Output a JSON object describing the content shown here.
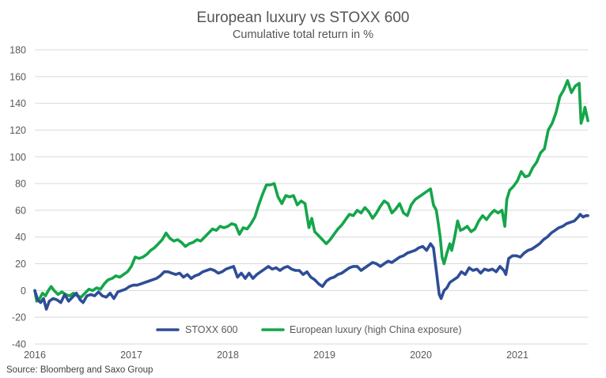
{
  "chart_data": {
    "type": "line",
    "title": "European luxury vs STOXX 600",
    "subtitle": "Cumulative total return in %",
    "xlabel": "",
    "ylabel": "",
    "ylim": [
      -40,
      180
    ],
    "yticks": [
      -40,
      -20,
      0,
      20,
      40,
      60,
      80,
      100,
      120,
      140,
      160,
      180
    ],
    "xlim": [
      2016,
      2021.73
    ],
    "xticks": [
      2016,
      2017,
      2018,
      2019,
      2020,
      2021
    ],
    "xtick_labels": [
      "2016",
      "2017",
      "2018",
      "2019",
      "2020",
      "2021"
    ],
    "grid": true,
    "legend_position": "bottom-center",
    "source": "Source: Bloomberg and Saxo Group",
    "series": [
      {
        "name": "STOXX 600",
        "color": "#2e4d96",
        "points": [
          [
            2016.0,
            0
          ],
          [
            2016.03,
            -7
          ],
          [
            2016.06,
            -9
          ],
          [
            2016.09,
            -6
          ],
          [
            2016.12,
            -14
          ],
          [
            2016.15,
            -8
          ],
          [
            2016.19,
            -6
          ],
          [
            2016.23,
            -7
          ],
          [
            2016.27,
            -9
          ],
          [
            2016.31,
            -3
          ],
          [
            2016.35,
            -8
          ],
          [
            2016.39,
            -5
          ],
          [
            2016.43,
            -2
          ],
          [
            2016.47,
            -7
          ],
          [
            2016.5,
            -9
          ],
          [
            2016.54,
            -4
          ],
          [
            2016.58,
            -3
          ],
          [
            2016.62,
            -4
          ],
          [
            2016.66,
            -1
          ],
          [
            2016.7,
            -4
          ],
          [
            2016.74,
            -5
          ],
          [
            2016.78,
            -2
          ],
          [
            2016.82,
            -6
          ],
          [
            2016.86,
            -1
          ],
          [
            2016.9,
            0
          ],
          [
            2016.94,
            1
          ],
          [
            2016.98,
            3
          ],
          [
            2017.02,
            4
          ],
          [
            2017.06,
            4
          ],
          [
            2017.1,
            5
          ],
          [
            2017.14,
            6
          ],
          [
            2017.18,
            7
          ],
          [
            2017.22,
            8
          ],
          [
            2017.26,
            9
          ],
          [
            2017.3,
            11
          ],
          [
            2017.34,
            14
          ],
          [
            2017.38,
            14
          ],
          [
            2017.42,
            13
          ],
          [
            2017.46,
            12
          ],
          [
            2017.5,
            13
          ],
          [
            2017.54,
            10
          ],
          [
            2017.58,
            12
          ],
          [
            2017.62,
            9
          ],
          [
            2017.66,
            11
          ],
          [
            2017.7,
            12
          ],
          [
            2017.74,
            14
          ],
          [
            2017.78,
            15
          ],
          [
            2017.82,
            16
          ],
          [
            2017.86,
            15
          ],
          [
            2017.9,
            13
          ],
          [
            2017.94,
            14
          ],
          [
            2017.98,
            16
          ],
          [
            2018.02,
            17
          ],
          [
            2018.06,
            18
          ],
          [
            2018.1,
            10
          ],
          [
            2018.14,
            13
          ],
          [
            2018.18,
            9
          ],
          [
            2018.22,
            13
          ],
          [
            2018.26,
            9
          ],
          [
            2018.3,
            12
          ],
          [
            2018.34,
            14
          ],
          [
            2018.38,
            16
          ],
          [
            2018.42,
            18
          ],
          [
            2018.46,
            16
          ],
          [
            2018.5,
            17
          ],
          [
            2018.54,
            15
          ],
          [
            2018.58,
            17
          ],
          [
            2018.62,
            18
          ],
          [
            2018.66,
            16
          ],
          [
            2018.7,
            15
          ],
          [
            2018.74,
            15
          ],
          [
            2018.78,
            12
          ],
          [
            2018.82,
            14
          ],
          [
            2018.86,
            10
          ],
          [
            2018.9,
            8
          ],
          [
            2018.94,
            5
          ],
          [
            2018.98,
            3
          ],
          [
            2019.02,
            7
          ],
          [
            2019.06,
            9
          ],
          [
            2019.1,
            10
          ],
          [
            2019.14,
            12
          ],
          [
            2019.18,
            13
          ],
          [
            2019.22,
            15
          ],
          [
            2019.26,
            17
          ],
          [
            2019.3,
            18
          ],
          [
            2019.34,
            18
          ],
          [
            2019.38,
            15
          ],
          [
            2019.42,
            17
          ],
          [
            2019.46,
            19
          ],
          [
            2019.5,
            21
          ],
          [
            2019.54,
            20
          ],
          [
            2019.58,
            18
          ],
          [
            2019.62,
            20
          ],
          [
            2019.66,
            22
          ],
          [
            2019.7,
            21
          ],
          [
            2019.74,
            23
          ],
          [
            2019.78,
            25
          ],
          [
            2019.82,
            26
          ],
          [
            2019.86,
            28
          ],
          [
            2019.9,
            29
          ],
          [
            2019.94,
            30
          ],
          [
            2019.98,
            32
          ],
          [
            2020.02,
            33
          ],
          [
            2020.06,
            30
          ],
          [
            2020.1,
            35
          ],
          [
            2020.13,
            32
          ],
          [
            2020.16,
            15
          ],
          [
            2020.19,
            -3
          ],
          [
            2020.21,
            -6
          ],
          [
            2020.24,
            0
          ],
          [
            2020.27,
            2
          ],
          [
            2020.3,
            6
          ],
          [
            2020.34,
            8
          ],
          [
            2020.38,
            10
          ],
          [
            2020.42,
            14
          ],
          [
            2020.46,
            12
          ],
          [
            2020.5,
            17
          ],
          [
            2020.54,
            15
          ],
          [
            2020.58,
            16
          ],
          [
            2020.62,
            13
          ],
          [
            2020.66,
            16
          ],
          [
            2020.7,
            15
          ],
          [
            2020.74,
            16
          ],
          [
            2020.78,
            14
          ],
          [
            2020.82,
            18
          ],
          [
            2020.86,
            15
          ],
          [
            2020.88,
            12
          ],
          [
            2020.91,
            24
          ],
          [
            2020.95,
            26
          ],
          [
            2020.99,
            26
          ],
          [
            2021.03,
            25
          ],
          [
            2021.07,
            28
          ],
          [
            2021.11,
            30
          ],
          [
            2021.15,
            31
          ],
          [
            2021.19,
            33
          ],
          [
            2021.23,
            35
          ],
          [
            2021.27,
            38
          ],
          [
            2021.31,
            40
          ],
          [
            2021.35,
            43
          ],
          [
            2021.39,
            45
          ],
          [
            2021.43,
            47
          ],
          [
            2021.47,
            48
          ],
          [
            2021.51,
            50
          ],
          [
            2021.55,
            51
          ],
          [
            2021.59,
            52
          ],
          [
            2021.63,
            55
          ],
          [
            2021.65,
            57
          ],
          [
            2021.68,
            55
          ],
          [
            2021.71,
            56
          ],
          [
            2021.73,
            56
          ]
        ]
      },
      {
        "name": "European luxury (high China exposure)",
        "color": "#14a64a",
        "points": [
          [
            2016.0,
            0
          ],
          [
            2016.02,
            -8
          ],
          [
            2016.05,
            -6
          ],
          [
            2016.08,
            -2
          ],
          [
            2016.11,
            -4
          ],
          [
            2016.14,
            0
          ],
          [
            2016.17,
            3
          ],
          [
            2016.2,
            0
          ],
          [
            2016.24,
            -3
          ],
          [
            2016.28,
            -1
          ],
          [
            2016.32,
            -3
          ],
          [
            2016.36,
            -4
          ],
          [
            2016.4,
            -2
          ],
          [
            2016.44,
            -4
          ],
          [
            2016.48,
            -5
          ],
          [
            2016.52,
            -2
          ],
          [
            2016.56,
            1
          ],
          [
            2016.6,
            0
          ],
          [
            2016.64,
            2
          ],
          [
            2016.68,
            1
          ],
          [
            2016.72,
            5
          ],
          [
            2016.76,
            8
          ],
          [
            2016.8,
            9
          ],
          [
            2016.84,
            11
          ],
          [
            2016.88,
            10
          ],
          [
            2016.92,
            12
          ],
          [
            2016.96,
            14
          ],
          [
            2017.0,
            18
          ],
          [
            2017.04,
            25
          ],
          [
            2017.08,
            24
          ],
          [
            2017.12,
            25
          ],
          [
            2017.16,
            27
          ],
          [
            2017.2,
            30
          ],
          [
            2017.24,
            32
          ],
          [
            2017.28,
            35
          ],
          [
            2017.32,
            38
          ],
          [
            2017.36,
            43
          ],
          [
            2017.4,
            39
          ],
          [
            2017.44,
            37
          ],
          [
            2017.48,
            38
          ],
          [
            2017.52,
            36
          ],
          [
            2017.56,
            33
          ],
          [
            2017.6,
            35
          ],
          [
            2017.64,
            36
          ],
          [
            2017.68,
            38
          ],
          [
            2017.72,
            37
          ],
          [
            2017.76,
            40
          ],
          [
            2017.8,
            43
          ],
          [
            2017.84,
            46
          ],
          [
            2017.88,
            45
          ],
          [
            2017.92,
            48
          ],
          [
            2017.96,
            47
          ],
          [
            2018.0,
            48
          ],
          [
            2018.04,
            50
          ],
          [
            2018.08,
            49
          ],
          [
            2018.12,
            42
          ],
          [
            2018.16,
            47
          ],
          [
            2018.2,
            46
          ],
          [
            2018.24,
            50
          ],
          [
            2018.28,
            55
          ],
          [
            2018.32,
            64
          ],
          [
            2018.36,
            72
          ],
          [
            2018.4,
            79
          ],
          [
            2018.44,
            79
          ],
          [
            2018.48,
            80
          ],
          [
            2018.52,
            70
          ],
          [
            2018.56,
            65
          ],
          [
            2018.6,
            71
          ],
          [
            2018.64,
            70
          ],
          [
            2018.68,
            71
          ],
          [
            2018.72,
            64
          ],
          [
            2018.76,
            67
          ],
          [
            2018.8,
            65
          ],
          [
            2018.84,
            47
          ],
          [
            2018.87,
            54
          ],
          [
            2018.9,
            44
          ],
          [
            2018.94,
            41
          ],
          [
            2018.98,
            38
          ],
          [
            2019.02,
            35
          ],
          [
            2019.06,
            38
          ],
          [
            2019.1,
            42
          ],
          [
            2019.14,
            46
          ],
          [
            2019.18,
            49
          ],
          [
            2019.22,
            53
          ],
          [
            2019.26,
            57
          ],
          [
            2019.3,
            56
          ],
          [
            2019.34,
            60
          ],
          [
            2019.38,
            58
          ],
          [
            2019.42,
            62
          ],
          [
            2019.46,
            59
          ],
          [
            2019.5,
            54
          ],
          [
            2019.54,
            58
          ],
          [
            2019.58,
            63
          ],
          [
            2019.62,
            67
          ],
          [
            2019.66,
            65
          ],
          [
            2019.7,
            58
          ],
          [
            2019.74,
            61
          ],
          [
            2019.78,
            65
          ],
          [
            2019.82,
            58
          ],
          [
            2019.86,
            56
          ],
          [
            2019.9,
            64
          ],
          [
            2019.94,
            68
          ],
          [
            2019.98,
            70
          ],
          [
            2020.02,
            72
          ],
          [
            2020.06,
            74
          ],
          [
            2020.1,
            76
          ],
          [
            2020.13,
            64
          ],
          [
            2020.16,
            60
          ],
          [
            2020.18,
            50
          ],
          [
            2020.2,
            40
          ],
          [
            2020.22,
            25
          ],
          [
            2020.24,
            20
          ],
          [
            2020.27,
            28
          ],
          [
            2020.3,
            35
          ],
          [
            2020.32,
            30
          ],
          [
            2020.35,
            40
          ],
          [
            2020.38,
            52
          ],
          [
            2020.41,
            45
          ],
          [
            2020.44,
            46
          ],
          [
            2020.48,
            48
          ],
          [
            2020.52,
            44
          ],
          [
            2020.56,
            46
          ],
          [
            2020.6,
            52
          ],
          [
            2020.64,
            56
          ],
          [
            2020.68,
            53
          ],
          [
            2020.72,
            57
          ],
          [
            2020.76,
            60
          ],
          [
            2020.8,
            58
          ],
          [
            2020.84,
            60
          ],
          [
            2020.87,
            48
          ],
          [
            2020.89,
            68
          ],
          [
            2020.92,
            75
          ],
          [
            2020.96,
            78
          ],
          [
            2021.0,
            82
          ],
          [
            2021.04,
            89
          ],
          [
            2021.08,
            85
          ],
          [
            2021.12,
            86
          ],
          [
            2021.16,
            92
          ],
          [
            2021.2,
            96
          ],
          [
            2021.24,
            103
          ],
          [
            2021.28,
            106
          ],
          [
            2021.32,
            120
          ],
          [
            2021.36,
            125
          ],
          [
            2021.4,
            133
          ],
          [
            2021.44,
            145
          ],
          [
            2021.48,
            150
          ],
          [
            2021.52,
            157
          ],
          [
            2021.56,
            148
          ],
          [
            2021.6,
            153
          ],
          [
            2021.64,
            155
          ],
          [
            2021.66,
            125
          ],
          [
            2021.68,
            130
          ],
          [
            2021.7,
            137
          ],
          [
            2021.73,
            127
          ]
        ]
      }
    ]
  }
}
